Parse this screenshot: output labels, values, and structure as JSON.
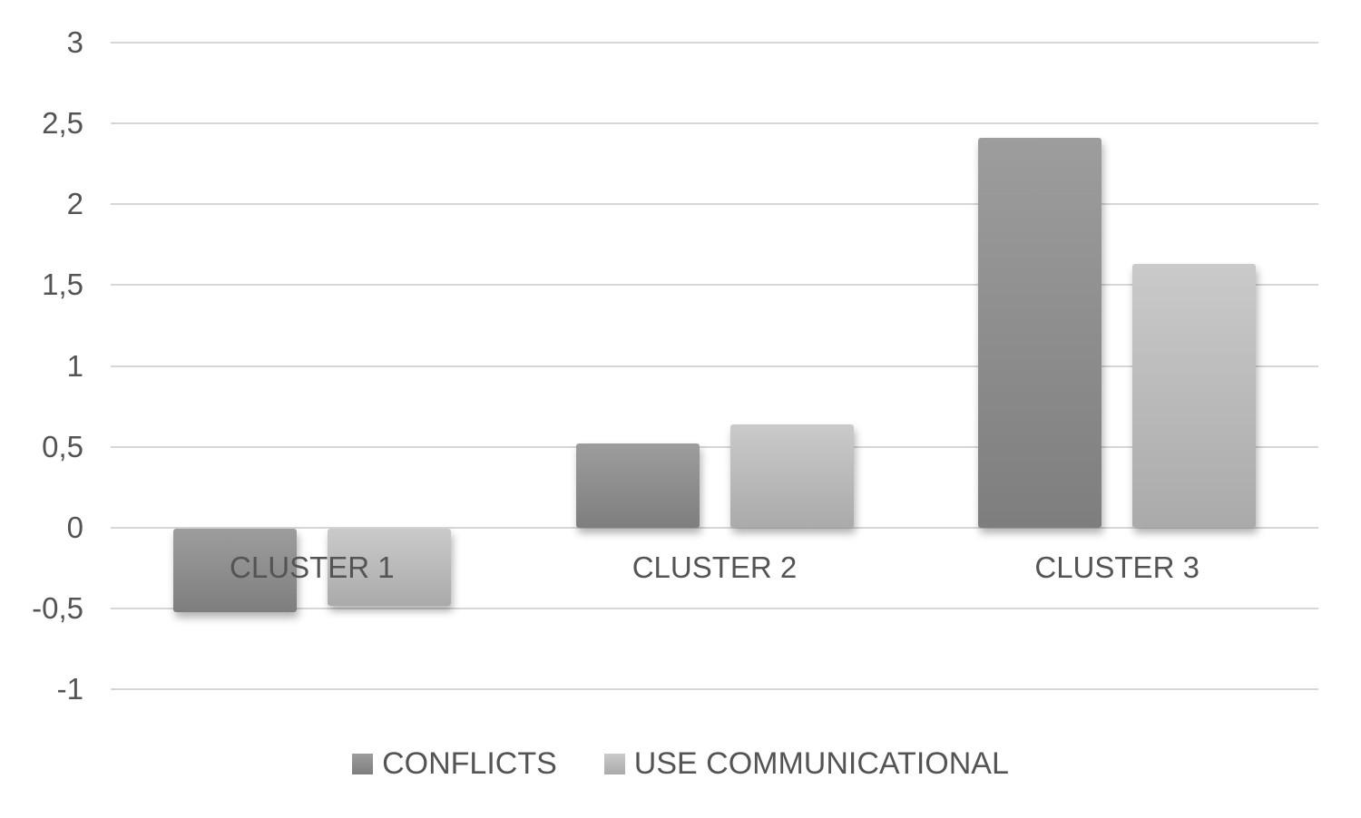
{
  "chart_data": {
    "type": "bar",
    "title": "",
    "xlabel": "",
    "ylabel": "",
    "categories": [
      "CLUSTER 1",
      "CLUSTER 2",
      "CLUSTER 3"
    ],
    "series": [
      {
        "name": "CONFLICTS",
        "values": [
          -0.52,
          0.52,
          2.41
        ],
        "color_top": "#9d9d9d",
        "color_bottom": "#7e7e7e"
      },
      {
        "name": "USE COMMUNICATIONAL",
        "values": [
          -0.48,
          0.64,
          1.63
        ],
        "color_top": "#cacaca",
        "color_bottom": "#aaaaaa"
      }
    ],
    "y_axis": {
      "min": -1,
      "max": 3,
      "step": 0.5,
      "decimal_separator": ",",
      "tick_labels": [
        "3",
        "2,5",
        "2",
        "1,5",
        "1",
        "0,5",
        "0",
        "-0,5",
        "-1"
      ]
    },
    "grid": true,
    "legend_position": "bottom",
    "colors": {
      "gridline": "#d6d6d6",
      "text": "#545454",
      "background": "#ffffff"
    }
  }
}
